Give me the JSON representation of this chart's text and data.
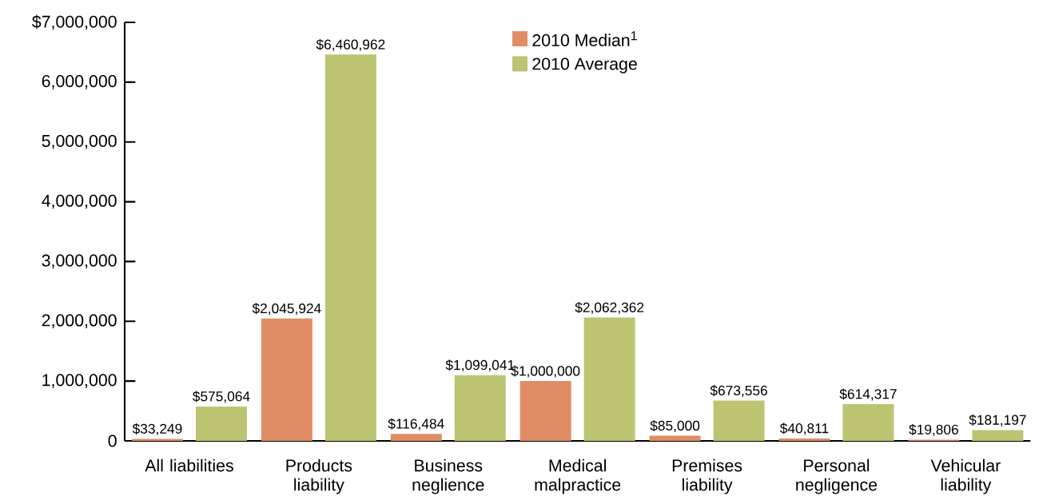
{
  "chart_data": {
    "type": "bar",
    "categories": [
      "All liabilities",
      "Products liability",
      "Business neglience",
      "Medical malpractice",
      "Premises liability",
      "Personal negligence",
      "Vehicular liability"
    ],
    "series": [
      {
        "name": "2010 Median$^{1}$",
        "color": "#e08c64",
        "values": [
          33249,
          2045924,
          116484,
          1000000,
          85000,
          40811,
          19806
        ],
        "value_labels": [
          "$33,249",
          "$2,045,924",
          "$116,484",
          "$1,000,000",
          "$85,000",
          "$40,811",
          "$19,806"
        ]
      },
      {
        "name": "2010 Average",
        "color": "#bcc472",
        "values": [
          575064,
          6460962,
          1099041,
          2062362,
          673556,
          614317,
          181197
        ],
        "value_labels": [
          "$575,064",
          "$6,460,962",
          "$1,099,041",
          "$2,062,362",
          "$673,556",
          "$614,317",
          "$181,197"
        ]
      }
    ],
    "ylim": [
      0,
      7000000
    ],
    "yticks": [
      0,
      {
        "value": 1000000,
        "label": "1,000,000"
      },
      {
        "value": 2000000,
        "label": "2,000,000"
      },
      {
        "value": 3000000,
        "label": "3,000,000"
      },
      {
        "value": 4000000,
        "label": "4,000,000"
      },
      {
        "value": 5000000,
        "label": "5,000,000"
      },
      {
        "value": 6000000,
        "label": "6,000,000"
      },
      {
        "value": 7000000,
        "label": "$7,000,000"
      }
    ],
    "grid": false,
    "legend": "top"
  }
}
